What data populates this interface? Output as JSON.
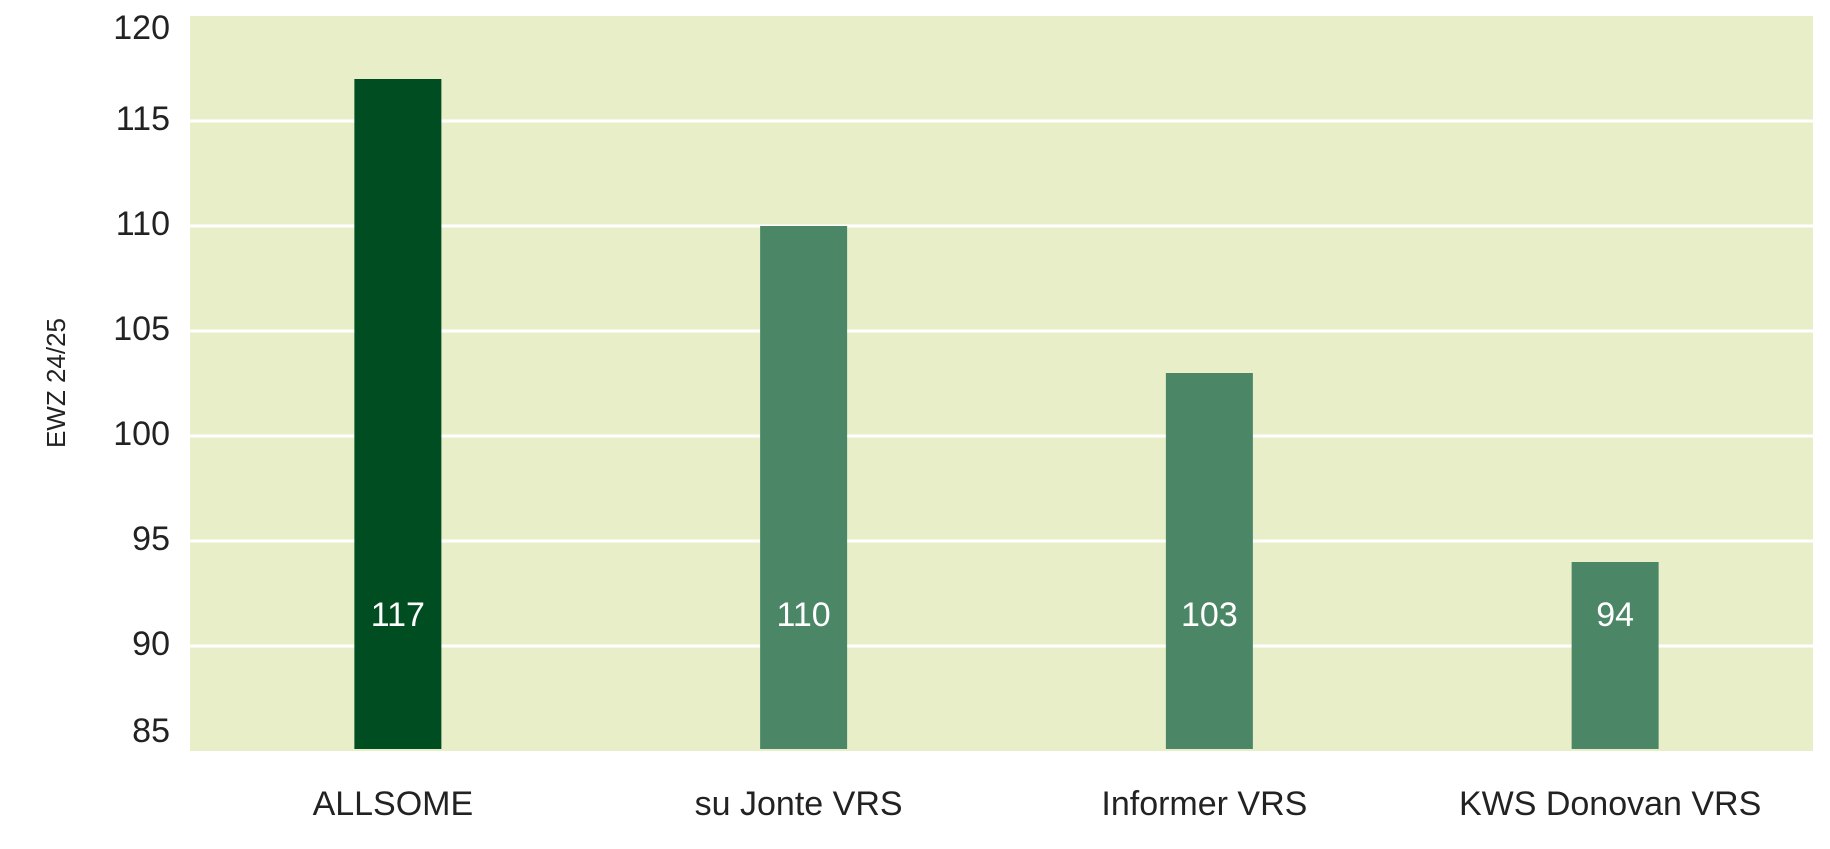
{
  "chart_data": {
    "type": "bar",
    "categories": [
      "ALLSOME",
      "su Jonte VRS",
      "Informer VRS",
      "KWS Donovan VRS"
    ],
    "values": [
      117,
      110,
      103,
      94
    ],
    "data_labels": [
      "117",
      "110",
      "103",
      "94"
    ],
    "ylabel": "EWZ 24/25",
    "ylim": [
      85,
      120
    ],
    "yticks": [
      85,
      90,
      95,
      100,
      105,
      110,
      115,
      120
    ],
    "grid": true,
    "legend": "none",
    "colors": {
      "plot_background": "#e8efc8",
      "gridline": "#ffffff",
      "highlight_bar": "#004d22",
      "bar": "#4b8766",
      "data_label": "#ffffff"
    }
  }
}
